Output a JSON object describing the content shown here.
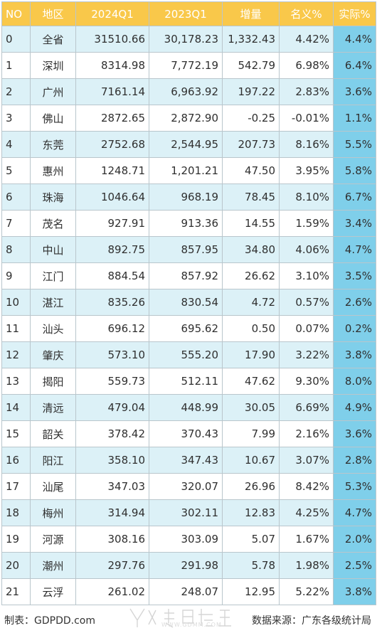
{
  "headers": [
    "NO",
    "地区",
    "2024Q1",
    "2023Q1",
    "增量",
    "名义%",
    "实际%"
  ],
  "rows": [
    [
      "0",
      "全省",
      "31510.66",
      "30,178.23",
      "1,332.43",
      "4.42%",
      "4.4%"
    ],
    [
      "1",
      "深圳",
      "8314.98",
      "7,772.19",
      "542.79",
      "6.98%",
      "6.4%"
    ],
    [
      "2",
      "广州",
      "7161.14",
      "6,963.92",
      "197.22",
      "2.83%",
      "3.6%"
    ],
    [
      "3",
      "佛山",
      "2872.65",
      "2,872.90",
      "-0.25",
      "-0.01%",
      "1.1%"
    ],
    [
      "4",
      "东莞",
      "2752.68",
      "2,544.95",
      "207.73",
      "8.16%",
      "5.5%"
    ],
    [
      "5",
      "惠州",
      "1248.71",
      "1,201.21",
      "47.50",
      "3.95%",
      "5.8%"
    ],
    [
      "6",
      "珠海",
      "1046.64",
      "968.19",
      "78.45",
      "8.10%",
      "6.7%"
    ],
    [
      "7",
      "茂名",
      "927.91",
      "913.36",
      "14.55",
      "1.59%",
      "3.4%"
    ],
    [
      "8",
      "中山",
      "892.75",
      "857.95",
      "34.80",
      "4.06%",
      "4.7%"
    ],
    [
      "9",
      "江门",
      "884.54",
      "857.92",
      "26.62",
      "3.10%",
      "3.5%"
    ],
    [
      "10",
      "湛江",
      "835.26",
      "830.54",
      "4.72",
      "0.57%",
      "2.6%"
    ],
    [
      "11",
      "汕头",
      "696.12",
      "695.62",
      "0.50",
      "0.07%",
      "0.2%"
    ],
    [
      "12",
      "肇庆",
      "573.10",
      "555.20",
      "17.90",
      "3.22%",
      "3.8%"
    ],
    [
      "13",
      "揭阳",
      "559.73",
      "512.11",
      "47.62",
      "9.30%",
      "8.0%"
    ],
    [
      "14",
      "清远",
      "479.04",
      "448.99",
      "30.05",
      "6.69%",
      "4.9%"
    ],
    [
      "15",
      "韶关",
      "378.42",
      "370.43",
      "7.99",
      "2.16%",
      "3.6%"
    ],
    [
      "16",
      "阳江",
      "358.10",
      "347.43",
      "10.67",
      "3.07%",
      "2.8%"
    ],
    [
      "17",
      "汕尾",
      "347.03",
      "320.07",
      "26.96",
      "8.42%",
      "5.3%"
    ],
    [
      "18",
      "梅州",
      "314.94",
      "302.11",
      "12.83",
      "4.25%",
      "4.7%"
    ],
    [
      "19",
      "河源",
      "308.16",
      "303.09",
      "5.07",
      "1.67%",
      "2.0%"
    ],
    [
      "20",
      "潮州",
      "297.76",
      "291.98",
      "5.78",
      "1.98%",
      "2.5%"
    ],
    [
      "21",
      "云浮",
      "261.02",
      "248.07",
      "12.95",
      "5.22%",
      "3.8%"
    ]
  ],
  "footer": {
    "left": "制表：GDPDD.com",
    "right": "数据来源：广东各级统计局"
  },
  "watermark": {
    "url": "WWW.GDMM.COM"
  },
  "colors": {
    "header_bg": "#f9c84a",
    "header_text": "#ffffff",
    "row_alt_bg": "#dcf1f7",
    "real_col_bg": "#7fcfea",
    "border": "#b9c6cc"
  }
}
